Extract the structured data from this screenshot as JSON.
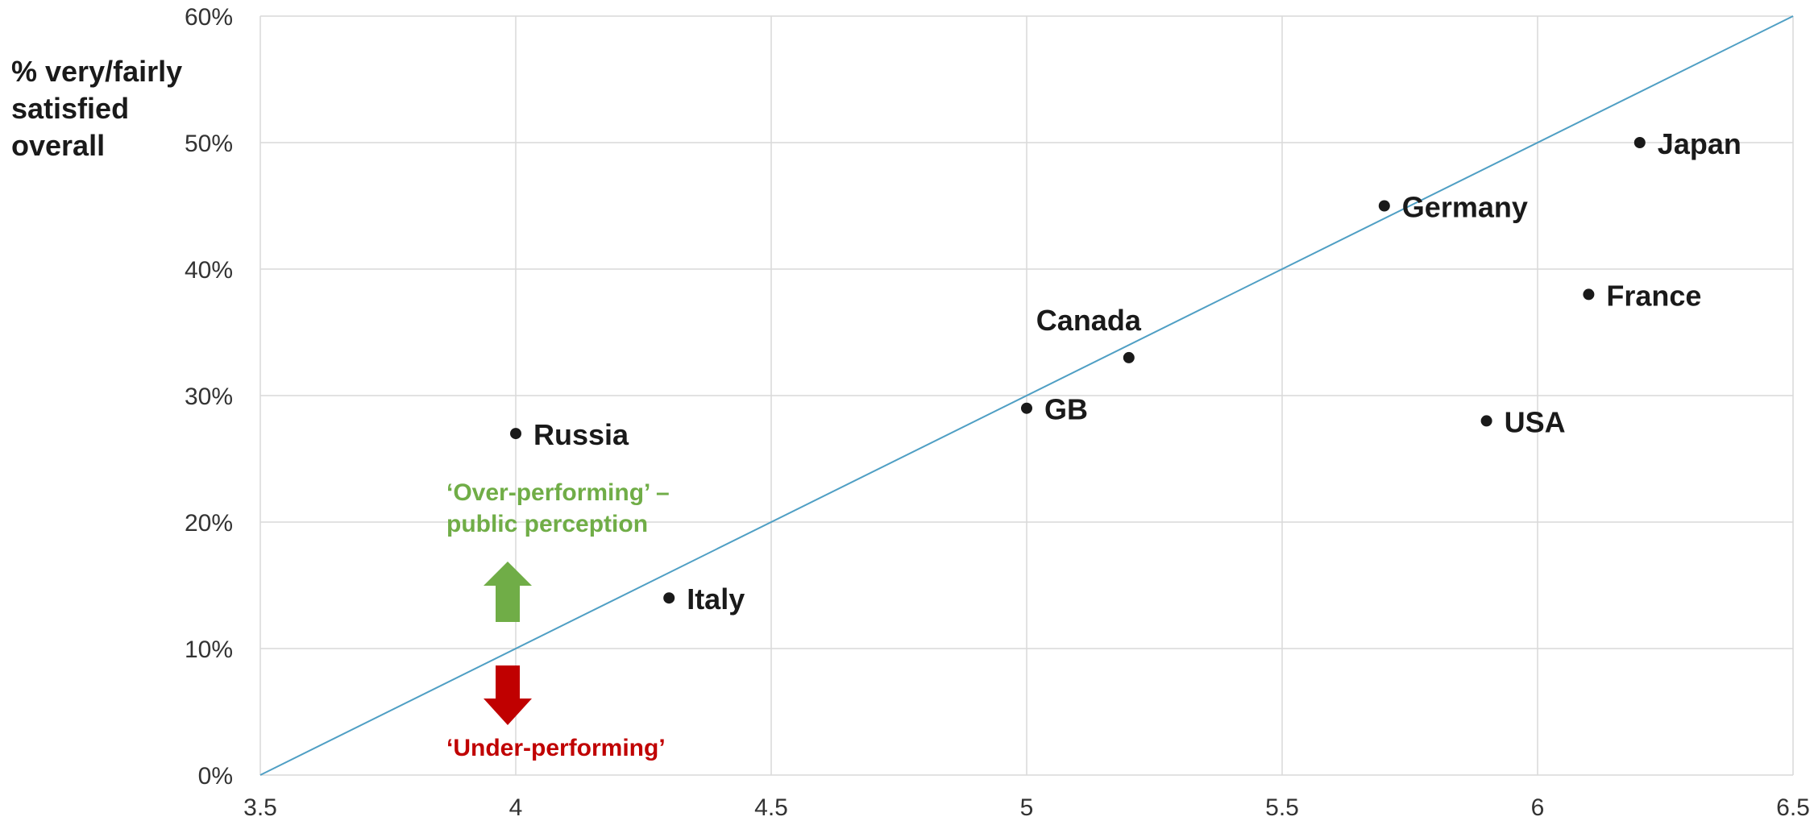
{
  "chart_data": {
    "type": "scatter",
    "ylabel_lines": [
      "% very/fairly",
      "satisfied",
      "overall"
    ],
    "xlabel": "",
    "xlim": [
      3.5,
      6.5
    ],
    "ylim": [
      0,
      60
    ],
    "x_ticks": [
      3.5,
      4,
      4.5,
      5,
      5.5,
      6,
      6.5
    ],
    "x_tick_labels": [
      "3.5",
      "4",
      "4.5",
      "5",
      "5.5",
      "6",
      "6.5"
    ],
    "y_ticks": [
      0,
      10,
      20,
      30,
      40,
      50,
      60
    ],
    "y_tick_labels": [
      "0%",
      "10%",
      "20%",
      "30%",
      "40%",
      "50%",
      "60%"
    ],
    "grid": true,
    "points": [
      {
        "label": "Russia",
        "x": 4.0,
        "y": 27
      },
      {
        "label": "Italy",
        "x": 4.3,
        "y": 14
      },
      {
        "label": "GB",
        "x": 5.0,
        "y": 29
      },
      {
        "label": "Canada",
        "x": 5.2,
        "y": 33
      },
      {
        "label": "Germany",
        "x": 5.7,
        "y": 45
      },
      {
        "label": "USA",
        "x": 5.9,
        "y": 28
      },
      {
        "label": "France",
        "x": 6.1,
        "y": 38
      },
      {
        "label": "Japan",
        "x": 6.2,
        "y": 50
      }
    ],
    "reference_line": {
      "from": [
        3.5,
        0
      ],
      "to": [
        6.5,
        60
      ]
    },
    "annotations": {
      "over_lines": [
        "‘Over-performing’ –",
        "public perception"
      ],
      "under": "‘Under-performing’"
    },
    "colors": {
      "points": "#1a1a1a",
      "line": "#4f9fc4",
      "grid": "#d9d9d9",
      "over": "#70ad47",
      "under": "#c00000"
    }
  }
}
